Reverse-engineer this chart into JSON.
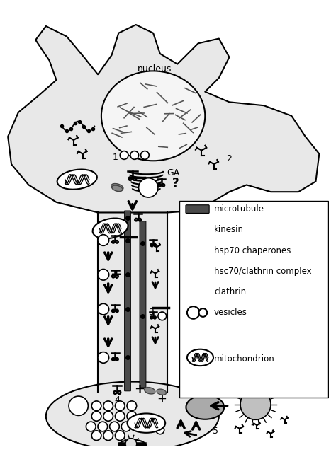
{
  "figsize": [
    4.74,
    6.39
  ],
  "dpi": 100,
  "cell_fill": "#e8e8e8",
  "cell_edge": "#000000",
  "nucleus_fill": "#f0f0f0",
  "white": "#ffffff",
  "black": "#000000",
  "gray_fill": "#909090",
  "dark_gray": "#333333",
  "med_gray": "#666666",
  "light_gray": "#cccccc",
  "legend_labels": [
    "microtubule",
    "kinesin",
    "hsp70 chaperones",
    "hsc70/clathrin complex",
    "clathrin",
    "vesicles",
    "mitochondrion"
  ]
}
